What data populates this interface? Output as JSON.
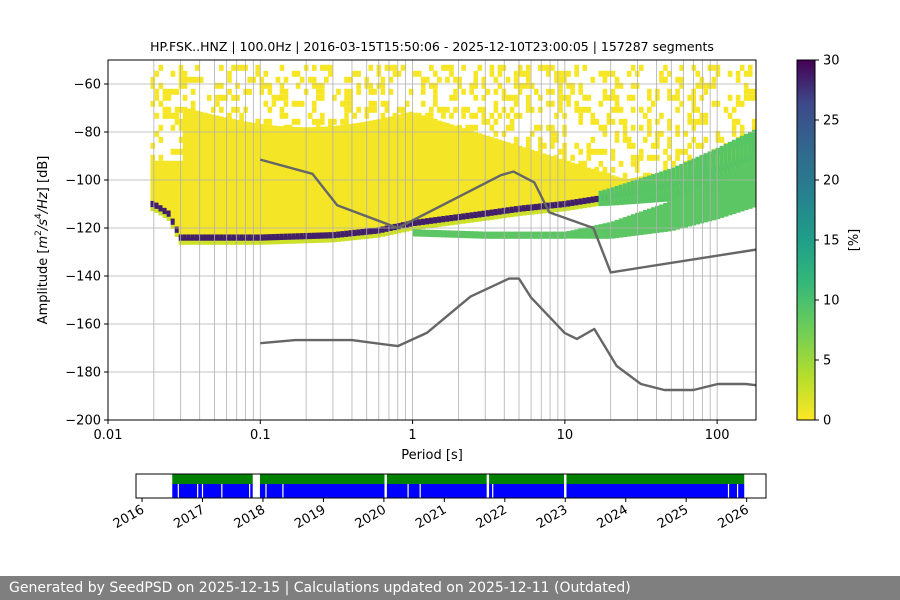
{
  "chart_data": [
    {
      "type": "heatmap",
      "title": "HP.FSK..HNZ | 100.0Hz | 2016-03-15T15:50:06 - 2025-12-10T23:00:05 | 157287 segments",
      "xlabel": "Period [s]",
      "ylabel_parts": [
        "Amplitude [",
        "m",
        "2",
        "/",
        "s",
        "4",
        "/",
        "Hz",
        "] [dB]"
      ],
      "xscale": "log",
      "xlim": [
        0.01,
        180
      ],
      "ylim": [
        -200,
        -50
      ],
      "xticks": [
        0.01,
        0.1,
        1,
        10,
        100
      ],
      "xtick_labels": [
        "0.01",
        "0.1",
        "1",
        "10",
        "100"
      ],
      "yticks": [
        -200,
        -180,
        -160,
        -140,
        -120,
        -100,
        -80,
        -60
      ],
      "ytick_labels": [
        "−200",
        "−180",
        "−160",
        "−140",
        "−120",
        "−100",
        "−80",
        "−60"
      ],
      "grid": true,
      "colorbar": {
        "label": "[%]",
        "range": [
          0,
          30
        ],
        "ticks": [
          0,
          5,
          10,
          15,
          20,
          25,
          30
        ],
        "tick_labels": [
          "0",
          "5",
          "10",
          "15",
          "20",
          "25",
          "30"
        ],
        "colormap": "viridis_r"
      },
      "vertical_lines_period": [
        0.02,
        0.03,
        0.04,
        0.05,
        0.06,
        0.07,
        0.08,
        0.09,
        0.2,
        0.3,
        0.4,
        0.5,
        0.6,
        0.7,
        0.8,
        0.9,
        2,
        3,
        4,
        5,
        6,
        7,
        8,
        9,
        20,
        30,
        40,
        50,
        60,
        70,
        80,
        90
      ],
      "series": [
        {
          "role": "model-high",
          "x": [
            0.1,
            0.22,
            0.32,
            0.8,
            3.8,
            4.6,
            6.3,
            7.9,
            15.4,
            20,
            180
          ],
          "y": [
            -91.5,
            -97.4,
            -110.5,
            -120,
            -98,
            -96.5,
            -101,
            -113.5,
            -120.0,
            -138.5,
            -129
          ],
          "color": "#666666"
        },
        {
          "role": "model-low",
          "x": [
            0.1,
            0.17,
            0.4,
            0.8,
            1.24,
            2.4,
            4.3,
            5.0,
            6.0,
            10.0,
            12.0,
            15.6,
            21.9,
            31.6,
            45.0,
            70.0,
            101.0,
            154.0,
            180
          ],
          "y": [
            -168,
            -166.7,
            -166.7,
            -169.2,
            -163.7,
            -148.6,
            -141.1,
            -141.1,
            -149.0,
            -163.8,
            -166.2,
            -162.1,
            -177.5,
            -185.0,
            -187.5,
            -187.5,
            -185.0,
            -185.0,
            -185.5
          ],
          "color": "#666666"
        }
      ],
      "density_ridges": [
        {
          "role": "main-noise-level",
          "x": [
            0.02,
            0.025,
            0.03,
            0.05,
            0.1,
            0.3,
            0.6,
            1,
            3,
            5,
            10,
            20,
            50,
            100,
            180
          ],
          "y": [
            -110,
            -114,
            -124,
            -124,
            -124,
            -123,
            -121,
            -118,
            -114,
            -112,
            -110,
            -107,
            -102,
            -96,
            -90
          ],
          "peak_percent": 30
        },
        {
          "role": "secondary-noise-level",
          "x": [
            1,
            3,
            10,
            20,
            50,
            100,
            180
          ],
          "y": [
            -122,
            -123,
            -123,
            -121,
            -115,
            -108,
            -101
          ],
          "peak_percent": 16
        }
      ]
    },
    {
      "type": "availability-timeline",
      "xlabels": [
        "2016",
        "2017",
        "2018",
        "2019",
        "2020",
        "2021",
        "2022",
        "2023",
        "2024",
        "2025",
        "2026"
      ],
      "data_start": 2016.5,
      "data_end": 2025.96,
      "colors": {
        "upper": "#008000",
        "lower": "#0000ff"
      },
      "gaps": [
        2017.88,
        2017.93,
        2020.03,
        2021.72,
        2023.0
      ],
      "thin_gaps": [
        2016.6,
        2016.92,
        2017.0,
        2017.32,
        2017.78,
        2018.05,
        2018.33,
        2020.4,
        2020.6,
        2021.8,
        2025.7,
        2025.85
      ]
    }
  ],
  "footer": {
    "text": "Generated by SeedPSD on 2025-12-15 | Calculations updated on 2025-12-11 (Outdated)"
  }
}
